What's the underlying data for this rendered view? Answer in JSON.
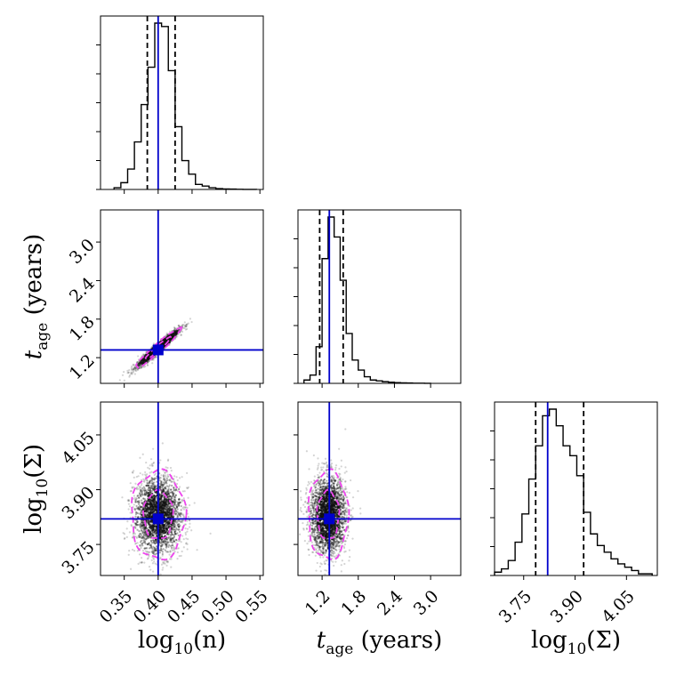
{
  "chart_data": {
    "type": "corner",
    "title": "",
    "parameters": [
      {
        "name": "log10_n",
        "label_main": "log",
        "label_sub": "10",
        "label_rest": "(n)",
        "range": [
          0.315,
          0.555
        ],
        "ticks": [
          0.35,
          0.4,
          0.45,
          0.5,
          0.55
        ],
        "tick_labels": [
          "0.35",
          "0.40",
          "0.45",
          "0.50",
          "0.55"
        ],
        "truth": 0.4,
        "quantiles": [
          0.384,
          0.4,
          0.425
        ]
      },
      {
        "name": "t_age",
        "label_main": "t",
        "label_sub": "age",
        "label_rest": " (years)",
        "range": [
          0.8,
          3.5
        ],
        "ticks": [
          1.2,
          1.8,
          2.4,
          3.0
        ],
        "tick_labels": [
          "1.2",
          "1.8",
          "2.4",
          "3.0"
        ],
        "truth": 1.32,
        "quantiles": [
          1.16,
          1.32,
          1.55
        ]
      },
      {
        "name": "log10_Sigma",
        "label_main": "log",
        "label_sub": "10",
        "label_rest": "(Σ)",
        "range": [
          3.665,
          4.14
        ],
        "ticks": [
          3.75,
          3.9,
          4.05
        ],
        "tick_labels": [
          "3.75",
          "3.90",
          "4.05"
        ],
        "truth": 3.82,
        "quantiles": [
          3.785,
          3.82,
          3.925
        ]
      }
    ],
    "histograms": [
      {
        "param": "log10_n",
        "bin_edges": [
          0.335,
          0.345,
          0.355,
          0.365,
          0.375,
          0.385,
          0.395,
          0.405,
          0.415,
          0.425,
          0.435,
          0.445,
          0.455,
          0.465,
          0.475,
          0.485,
          0.495,
          0.505,
          0.515,
          0.525,
          0.535,
          0.545
        ],
        "counts": [
          1,
          4,
          12,
          28,
          50,
          72,
          98,
          96,
          70,
          37,
          17,
          9,
          3,
          2,
          1,
          0.5,
          0.3,
          0.2,
          0.1,
          0.05,
          0.05
        ]
      },
      {
        "param": "t_age",
        "bin_edges": [
          0.9,
          1.0,
          1.1,
          1.2,
          1.3,
          1.4,
          1.5,
          1.6,
          1.7,
          1.8,
          1.9,
          2.0,
          2.1,
          2.2,
          2.3,
          2.4,
          2.5,
          2.6,
          2.7,
          2.8,
          2.9,
          3.0
        ],
        "counts": [
          2,
          5,
          22,
          75,
          100,
          88,
          62,
          30,
          14,
          8,
          4,
          2,
          1.5,
          1,
          0.7,
          0.4,
          0.3,
          0.2,
          0.1,
          0.1,
          0.05
        ]
      },
      {
        "param": "log10_Sigma",
        "bin_edges": [
          3.665,
          3.685,
          3.705,
          3.725,
          3.745,
          3.765,
          3.785,
          3.805,
          3.825,
          3.845,
          3.865,
          3.885,
          3.905,
          3.925,
          3.945,
          3.965,
          3.985,
          4.005,
          4.025,
          4.045,
          4.065,
          4.085,
          4.105,
          4.125
        ],
        "counts": [
          2,
          4,
          9,
          20,
          37,
          58,
          78,
          96,
          100,
          90,
          78,
          72,
          60,
          38,
          25,
          18,
          14,
          10,
          7,
          5,
          3,
          1,
          1
        ]
      }
    ],
    "scatter_panels": [
      {
        "x": "log10_n",
        "y": "t_age",
        "correlation": 0.96,
        "center": [
          0.4,
          1.35
        ],
        "sd": [
          0.015,
          0.14
        ]
      },
      {
        "x": "log10_n",
        "y": "log10_Sigma",
        "correlation": 0.0,
        "center": [
          0.4,
          3.83
        ],
        "sd": [
          0.018,
          0.055
        ]
      },
      {
        "x": "t_age",
        "y": "log10_Sigma",
        "correlation": 0.0,
        "center": [
          1.3,
          3.83
        ],
        "sd": [
          0.15,
          0.055
        ]
      }
    ],
    "colors": {
      "truth": "#0000cc",
      "hist": "#000000",
      "points": "#777777",
      "contours": "#ee44ee",
      "quantiles": "#000000"
    }
  }
}
